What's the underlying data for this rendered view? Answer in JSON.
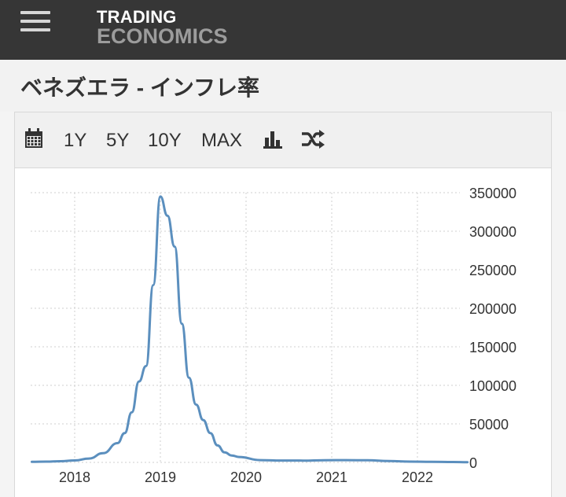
{
  "header": {
    "menu_icon": "hamburger-menu-icon",
    "logo_line1": "TRADING",
    "logo_line2": "ECONOMICS"
  },
  "page": {
    "title": "ベネズエラ - インフレ率"
  },
  "toolbar": {
    "calendar_icon": "calendar-icon",
    "ranges": [
      "1Y",
      "5Y",
      "10Y",
      "MAX"
    ],
    "bar_chart_icon": "bar-chart-icon",
    "shuffle_icon": "shuffle-icon"
  },
  "chart_data": {
    "type": "line",
    "title": "",
    "xlabel": "",
    "ylabel": "",
    "x_ticks": [
      "2018",
      "2019",
      "2020",
      "2021",
      "2022"
    ],
    "y_ticks": [
      0,
      50000,
      100000,
      150000,
      200000,
      250000,
      300000,
      350000
    ],
    "ylim": [
      0,
      350000
    ],
    "grid": true,
    "series": [
      {
        "color": "#5b8fbe",
        "x": [
          "2017-07",
          "2017-09",
          "2017-11",
          "2018-01",
          "2018-03",
          "2018-05",
          "2018-07",
          "2018-08",
          "2018-09",
          "2018-10",
          "2018-11",
          "2018-12",
          "2019-01",
          "2019-02",
          "2019-03",
          "2019-04",
          "2019-05",
          "2019-06",
          "2019-07",
          "2019-08",
          "2019-09",
          "2019-10",
          "2019-11",
          "2019-12",
          "2020-03",
          "2020-06",
          "2020-09",
          "2020-12",
          "2021-03",
          "2021-06",
          "2021-09",
          "2021-12",
          "2022-03",
          "2022-06",
          "2022-08"
        ],
        "values": [
          800,
          1000,
          1500,
          2600,
          5000,
          12000,
          25000,
          38000,
          65000,
          105000,
          125000,
          230000,
          345000,
          320000,
          280000,
          180000,
          110000,
          75000,
          55000,
          38000,
          22000,
          13000,
          9000,
          7000,
          3000,
          2500,
          2300,
          2900,
          3000,
          2800,
          1800,
          1000,
          700,
          500,
          300
        ]
      }
    ]
  }
}
